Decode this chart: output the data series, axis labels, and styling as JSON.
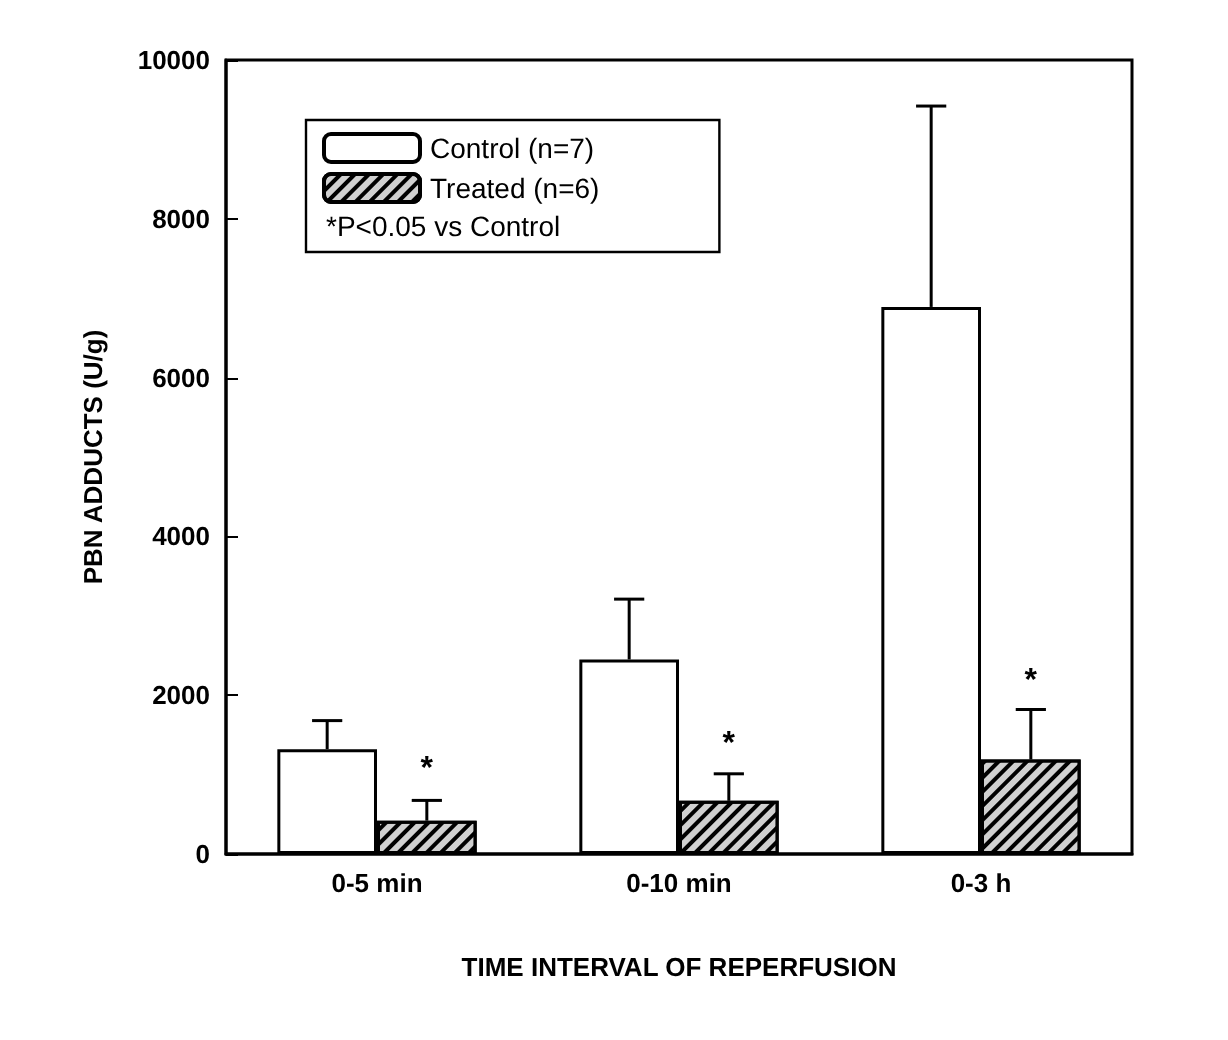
{
  "chart_data": {
    "type": "bar",
    "xlabel": "TIME INTERVAL OF REPERFUSION",
    "ylabel": "PBN ADDUCTS (U/g)",
    "categories": [
      "0-5 min",
      "0-10 min",
      "0-3 h"
    ],
    "series": [
      {
        "name": "Control (n=7)",
        "color": "#ffffff",
        "values": [
          1320,
          2450,
          6890
        ],
        "errors": [
          360,
          760,
          2530
        ]
      },
      {
        "name": "Treated (n=6)",
        "color": "#d0d0d0",
        "values": [
          420,
          670,
          1190
        ],
        "errors": [
          255,
          340,
          630
        ]
      }
    ],
    "ylim": [
      0,
      10000
    ],
    "yticks": [
      0,
      2000,
      4000,
      6000,
      8000,
      10000
    ],
    "grid": false,
    "legend": "top left",
    "annotations": [
      "*P<0.05 vs Control",
      {
        "text": "*",
        "x": "0-5 min",
        "y": 1070
      },
      {
        "text": "*",
        "x": "0-10 min",
        "y": 1380
      },
      {
        "text": "*",
        "x": "0-3 h",
        "y": 2180
      }
    ]
  }
}
